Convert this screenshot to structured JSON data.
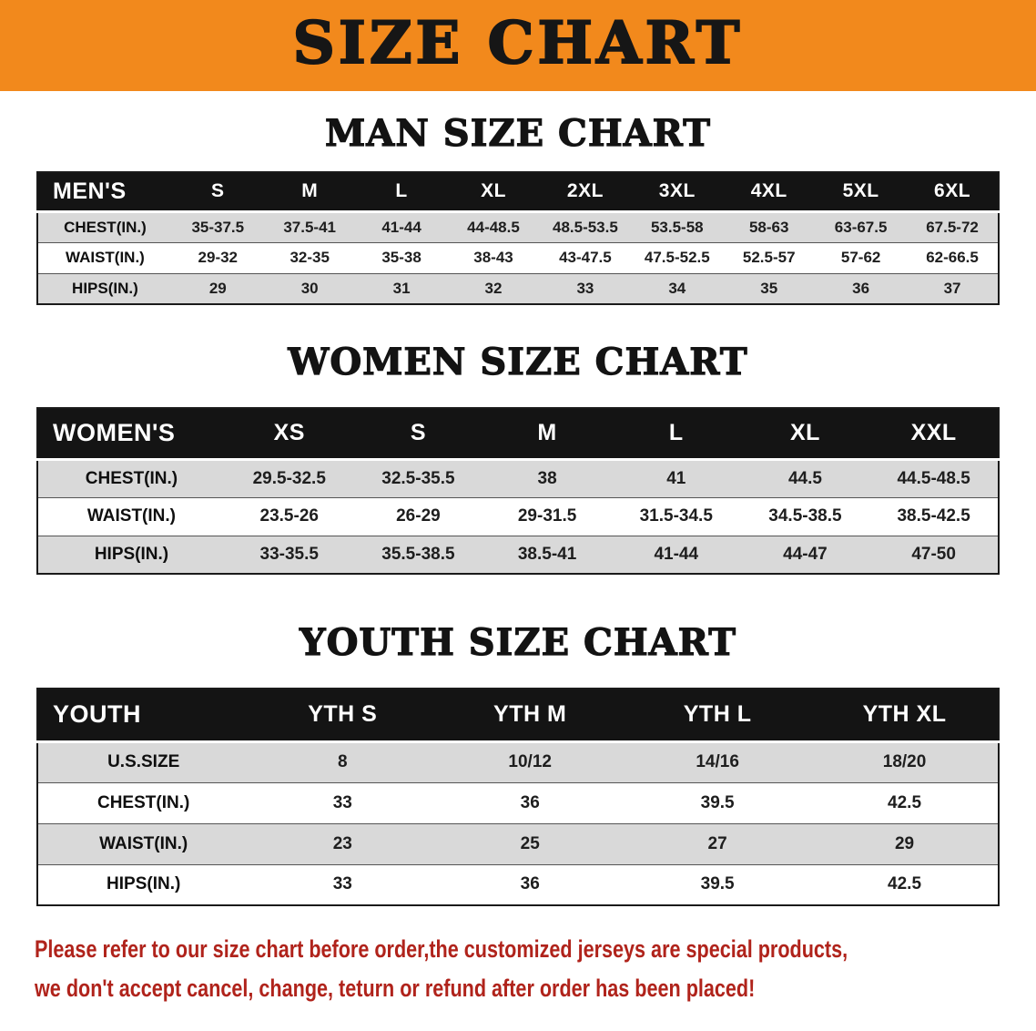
{
  "colors": {
    "banner_bg": "#F2891C",
    "header_bar_bg": "#141414",
    "row_stripe": "#D9D9D9",
    "notice_red": "#B0231B"
  },
  "banner": {
    "title": "SIZE CHART"
  },
  "sections": [
    {
      "id": "men",
      "heading": "MAN SIZE CHART",
      "header": [
        "MEN'S",
        "S",
        "M",
        "L",
        "XL",
        "2XL",
        "3XL",
        "4XL",
        "5XL",
        "6XL"
      ],
      "rows": [
        [
          "CHEST(IN.)",
          "35-37.5",
          "37.5-41",
          "41-44",
          "44-48.5",
          "48.5-53.5",
          "53.5-58",
          "58-63",
          "63-67.5",
          "67.5-72"
        ],
        [
          "WAIST(IN.)",
          "29-32",
          "32-35",
          "35-38",
          "38-43",
          "43-47.5",
          "47.5-52.5",
          "52.5-57",
          "57-62",
          "62-66.5"
        ],
        [
          "HIPS(IN.)",
          "29",
          "30",
          "31",
          "32",
          "33",
          "34",
          "35",
          "36",
          "37"
        ]
      ]
    },
    {
      "id": "women",
      "heading": "WOMEN SIZE CHART",
      "header": [
        "WOMEN'S",
        "XS",
        "S",
        "M",
        "L",
        "XL",
        "XXL"
      ],
      "rows": [
        [
          "CHEST(IN.)",
          "29.5-32.5",
          "32.5-35.5",
          "38",
          "41",
          "44.5",
          "44.5-48.5"
        ],
        [
          "WAIST(IN.)",
          "23.5-26",
          "26-29",
          "29-31.5",
          "31.5-34.5",
          "34.5-38.5",
          "38.5-42.5"
        ],
        [
          "HIPS(IN.)",
          "33-35.5",
          "35.5-38.5",
          "38.5-41",
          "41-44",
          "44-47",
          "47-50"
        ]
      ]
    },
    {
      "id": "youth",
      "heading": "YOUTH SIZE CHART",
      "header": [
        "YOUTH",
        "YTH S",
        "YTH M",
        "YTH L",
        "YTH XL"
      ],
      "rows": [
        [
          "U.S.SIZE",
          "8",
          "10/12",
          "14/16",
          "18/20"
        ],
        [
          "CHEST(IN.)",
          "33",
          "36",
          "39.5",
          "42.5"
        ],
        [
          "WAIST(IN.)",
          "23",
          "25",
          "27",
          "29"
        ],
        [
          "HIPS(IN.)",
          "33",
          "36",
          "39.5",
          "42.5"
        ]
      ]
    }
  ],
  "footer": {
    "line1": "Please refer to our size chart before order,the customized jerseys are special products,",
    "line2": "we don't accept cancel, change, teturn or refund after order has been placed!"
  }
}
